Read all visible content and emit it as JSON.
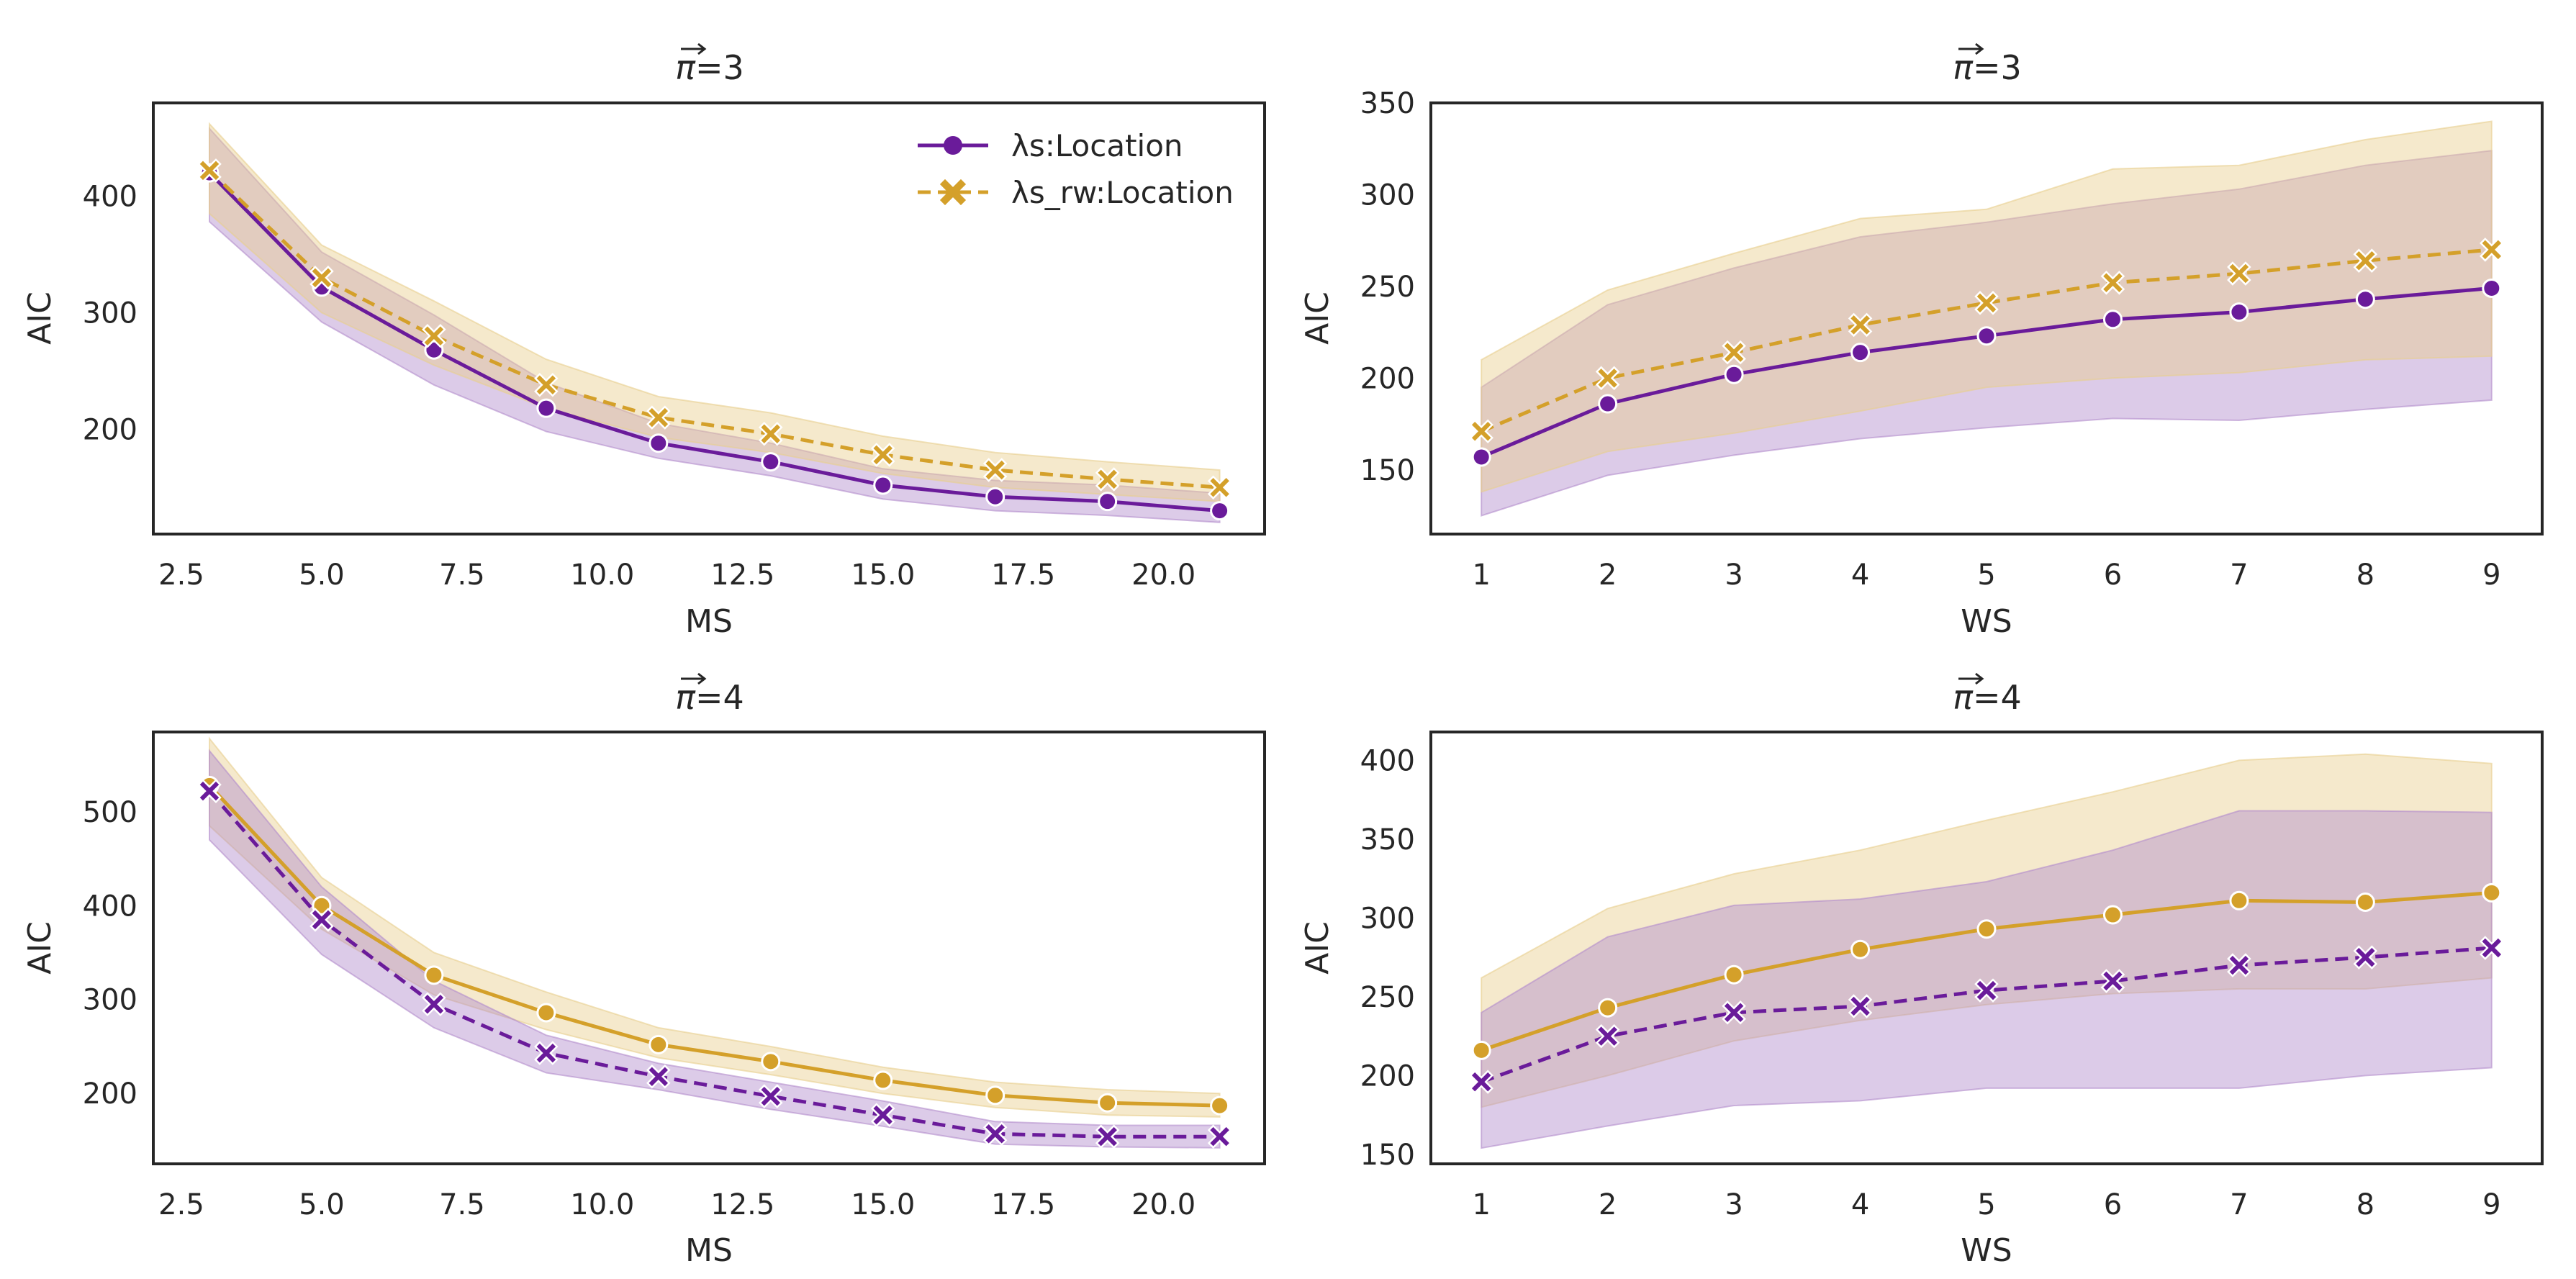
{
  "colors": {
    "purple": "#6a1b9a",
    "gold": "#d4a02a",
    "purple_band": "#b28ccb",
    "gold_band": "#e8cf8e",
    "frame": "#262626"
  },
  "legend": {
    "series_a": "λs:Location",
    "series_b": "λs_rw:Location"
  },
  "chart_data": [
    {
      "type": "line",
      "title": "π⃗=3",
      "title_symbol": "π",
      "title_value": "=3",
      "xlabel": "MS",
      "ylabel": "AIC",
      "xlim": [
        2.0,
        21.8
      ],
      "ylim": [
        110,
        480
      ],
      "x_ticks": [
        2.5,
        5.0,
        7.5,
        10.0,
        12.5,
        15.0,
        17.5,
        20.0
      ],
      "x_tick_labels": [
        "2.5",
        "5.0",
        "7.5",
        "10.0",
        "12.5",
        "15.0",
        "17.5",
        "20.0"
      ],
      "y_ticks": [
        200,
        300,
        400
      ],
      "y_tick_labels": [
        "200",
        "300",
        "400"
      ],
      "legend_position": "top-right",
      "x": [
        3,
        5,
        7,
        9,
        11,
        13,
        15,
        17,
        19,
        21
      ],
      "series": [
        {
          "name": "λs:Location",
          "color": "purple",
          "marker": "circle",
          "dashed": false,
          "values": [
            420,
            322,
            268,
            218,
            188,
            172,
            152,
            142,
            138,
            130
          ],
          "lower": [
            378,
            292,
            238,
            198,
            175,
            160,
            140,
            130,
            126,
            120
          ],
          "upper": [
            458,
            352,
            298,
            240,
            205,
            188,
            166,
            156,
            152,
            145
          ]
        },
        {
          "name": "λs_rw:Location",
          "color": "gold",
          "marker": "x",
          "dashed": true,
          "values": [
            422,
            330,
            280,
            238,
            210,
            196,
            178,
            165,
            157,
            150
          ],
          "lower": [
            385,
            300,
            255,
            218,
            193,
            180,
            162,
            150,
            144,
            138
          ],
          "upper": [
            462,
            358,
            310,
            260,
            228,
            214,
            194,
            180,
            172,
            165
          ]
        }
      ]
    },
    {
      "type": "line",
      "title": "π⃗=3",
      "title_symbol": "π",
      "title_value": "=3",
      "xlabel": "WS",
      "ylabel": "AIC",
      "xlim": [
        0.6,
        9.4
      ],
      "ylim": [
        115,
        350
      ],
      "x_ticks": [
        1,
        2,
        3,
        4,
        5,
        6,
        7,
        8,
        9
      ],
      "x_tick_labels": [
        "1",
        "2",
        "3",
        "4",
        "5",
        "6",
        "7",
        "8",
        "9"
      ],
      "y_ticks": [
        150,
        200,
        250,
        300,
        350
      ],
      "y_tick_labels": [
        "150",
        "200",
        "250",
        "300",
        "350"
      ],
      "x": [
        1,
        2,
        3,
        4,
        5,
        6,
        7,
        8,
        9
      ],
      "series": [
        {
          "name": "λs:Location",
          "color": "purple",
          "marker": "circle",
          "dashed": false,
          "values": [
            157,
            186,
            202,
            214,
            223,
            232,
            236,
            243,
            249
          ],
          "lower": [
            125,
            147,
            158,
            167,
            173,
            178,
            177,
            183,
            188
          ],
          "upper": [
            195,
            240,
            260,
            277,
            285,
            295,
            303,
            316,
            324
          ]
        },
        {
          "name": "λs_rw:Location",
          "color": "gold",
          "marker": "x",
          "dashed": true,
          "values": [
            171,
            200,
            214,
            229,
            241,
            252,
            257,
            264,
            270
          ],
          "lower": [
            138,
            160,
            170,
            182,
            195,
            200,
            203,
            210,
            212
          ],
          "upper": [
            210,
            248,
            268,
            287,
            292,
            314,
            316,
            330,
            340
          ]
        }
      ]
    },
    {
      "type": "line",
      "title": "π⃗=4",
      "title_symbol": "π",
      "title_value": "=4",
      "xlabel": "MS",
      "ylabel": "AIC",
      "xlim": [
        2.0,
        21.8
      ],
      "ylim": [
        125,
        585
      ],
      "x_ticks": [
        2.5,
        5.0,
        7.5,
        10.0,
        12.5,
        15.0,
        17.5,
        20.0
      ],
      "x_tick_labels": [
        "2.5",
        "5.0",
        "7.5",
        "10.0",
        "12.5",
        "15.0",
        "17.5",
        "20.0"
      ],
      "y_ticks": [
        200,
        300,
        400,
        500
      ],
      "y_tick_labels": [
        "200",
        "300",
        "400",
        "500"
      ],
      "x": [
        3,
        5,
        7,
        9,
        11,
        13,
        15,
        17,
        19,
        21
      ],
      "series": [
        {
          "name": "λs:Location",
          "color": "gold",
          "marker": "circle",
          "dashed": false,
          "values": [
            528,
            400,
            326,
            286,
            252,
            234,
            214,
            198,
            190,
            187
          ],
          "lower": [
            485,
            375,
            305,
            268,
            238,
            220,
            200,
            185,
            177,
            175
          ],
          "upper": [
            578,
            430,
            350,
            308,
            270,
            250,
            228,
            212,
            204,
            200
          ]
        },
        {
          "name": "λs_rw:Location",
          "color": "purple",
          "marker": "x",
          "dashed": true,
          "values": [
            522,
            385,
            295,
            243,
            218,
            197,
            177,
            157,
            154,
            154
          ],
          "lower": [
            470,
            348,
            270,
            222,
            204,
            183,
            165,
            146,
            143,
            142
          ],
          "upper": [
            565,
            420,
            320,
            262,
            232,
            212,
            192,
            170,
            166,
            166
          ]
        }
      ]
    },
    {
      "type": "line",
      "title": "π⃗=4",
      "title_symbol": "π",
      "title_value": "=4",
      "xlabel": "WS",
      "ylabel": "AIC",
      "xlim": [
        0.6,
        9.4
      ],
      "ylim": [
        144,
        418
      ],
      "x_ticks": [
        1,
        2,
        3,
        4,
        5,
        6,
        7,
        8,
        9
      ],
      "x_tick_labels": [
        "1",
        "2",
        "3",
        "4",
        "5",
        "6",
        "7",
        "8",
        "9"
      ],
      "y_ticks": [
        150,
        200,
        250,
        300,
        350,
        400
      ],
      "y_tick_labels": [
        "150",
        "200",
        "250",
        "300",
        "350",
        "400"
      ],
      "x": [
        1,
        2,
        3,
        4,
        5,
        6,
        7,
        8,
        9
      ],
      "series": [
        {
          "name": "λs:Location",
          "color": "gold",
          "marker": "circle",
          "dashed": false,
          "values": [
            216,
            243,
            264,
            280,
            293,
            302,
            311,
            310,
            316
          ],
          "lower": [
            180,
            200,
            222,
            235,
            245,
            252,
            255,
            255,
            262
          ],
          "upper": [
            262,
            306,
            328,
            343,
            362,
            380,
            400,
            404,
            398
          ]
        },
        {
          "name": "λs_rw:Location",
          "color": "purple",
          "marker": "x",
          "dashed": true,
          "values": [
            196,
            225,
            240,
            244,
            254,
            260,
            270,
            275,
            281
          ],
          "lower": [
            154,
            168,
            181,
            184,
            192,
            192,
            192,
            200,
            205
          ],
          "upper": [
            240,
            288,
            308,
            312,
            323,
            343,
            368,
            368,
            367
          ]
        }
      ]
    }
  ]
}
